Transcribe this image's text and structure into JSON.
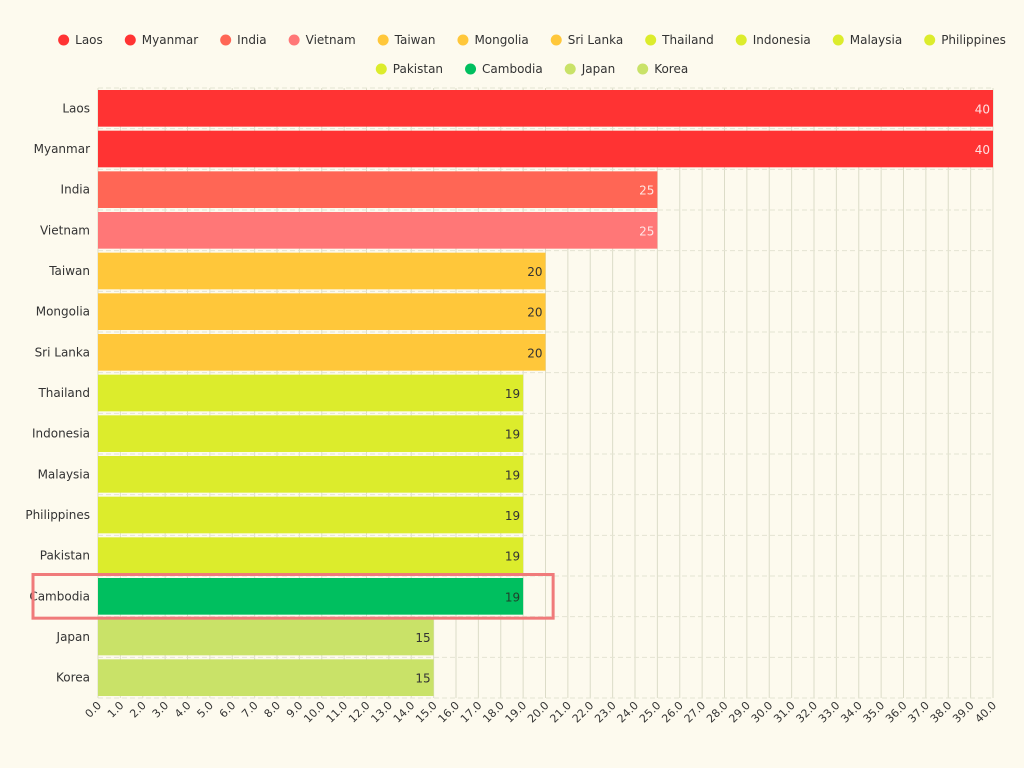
{
  "chart_data": {
    "type": "bar",
    "orientation": "horizontal",
    "title": "",
    "xlabel": "",
    "ylabel": "",
    "xlim": [
      0,
      40
    ],
    "tick_step": 1,
    "grid": true,
    "legend_position": "top",
    "highlight_category": "Cambodia",
    "highlight_color": "#f07a7a",
    "categories": [
      "Laos",
      "Myanmar",
      "India",
      "Vietnam",
      "Taiwan",
      "Mongolia",
      "Sri Lanka",
      "Thailand",
      "Indonesia",
      "Malaysia",
      "Philippines",
      "Pakistan",
      "Cambodia",
      "Japan",
      "Korea"
    ],
    "values": [
      40,
      40,
      25,
      25,
      20,
      20,
      20,
      19,
      19,
      19,
      19,
      19,
      19,
      15,
      15
    ],
    "colors": [
      "#ff3333",
      "#ff3333",
      "#ff6655",
      "#ff7777",
      "#ffc73a",
      "#ffc73a",
      "#ffc73a",
      "#dcec2c",
      "#dcec2c",
      "#dcec2c",
      "#dcec2c",
      "#dcec2c",
      "#00bf5f",
      "#c9e268",
      "#c9e268"
    ],
    "value_label_colors": [
      "#ffe0e0",
      "#ffe0e0",
      "#ffe5e0",
      "#ffe5e5",
      "#333333",
      "#333333",
      "#333333",
      "#333333",
      "#333333",
      "#333333",
      "#333333",
      "#333333",
      "#1f3f2a",
      "#333333",
      "#333333"
    ],
    "tick_labels": [
      "0.0",
      "1.0",
      "2.0",
      "3.0",
      "4.0",
      "5.0",
      "6.0",
      "7.0",
      "8.0",
      "9.0",
      "10.0",
      "11.0",
      "12.0",
      "13.0",
      "14.0",
      "15.0",
      "16.0",
      "17.0",
      "18.0",
      "19.0",
      "20.0",
      "21.0",
      "22.0",
      "23.0",
      "24.0",
      "25.0",
      "26.0",
      "27.0",
      "28.0",
      "29.0",
      "30.0",
      "31.0",
      "32.0",
      "33.0",
      "34.0",
      "35.0",
      "36.0",
      "37.0",
      "38.0",
      "39.0",
      "40.0"
    ]
  }
}
